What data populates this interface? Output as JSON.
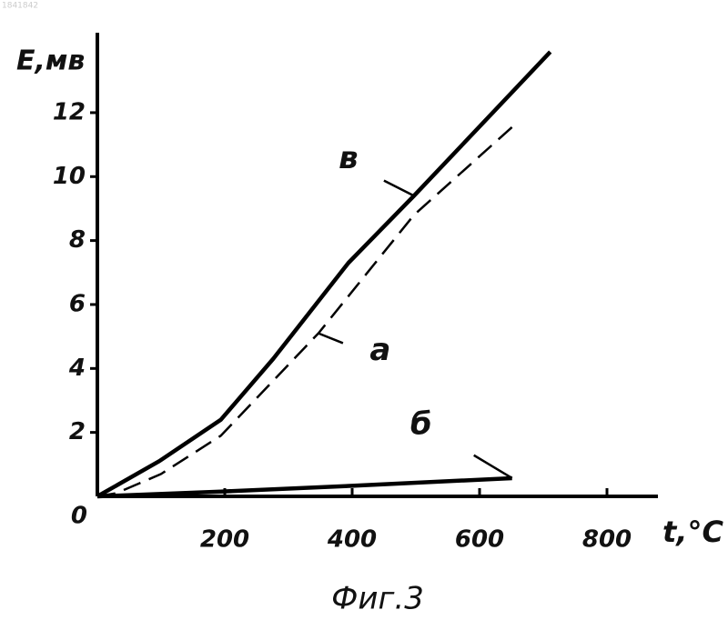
{
  "chart_data": {
    "type": "line",
    "document_id": "1841842",
    "caption": "Фиг.3",
    "y_label": "E,мв",
    "x_label": "t,°C",
    "xlim": [
      0,
      880
    ],
    "ylim": [
      0,
      14.5
    ],
    "xticks": [
      200,
      400,
      600,
      800
    ],
    "yticks": [
      0,
      2,
      4,
      6,
      8,
      10,
      12
    ],
    "grid": false,
    "series": [
      {
        "name": "в",
        "color": "#000000",
        "dashed": false,
        "x": [
          0,
          97,
          194,
          276,
          394,
          497,
          711
        ],
        "values": [
          0,
          1.1,
          2.4,
          4.3,
          7.3,
          9.4,
          13.9
        ]
      },
      {
        "name": "а",
        "color": "#000000",
        "dashed": true,
        "x": [
          0,
          30,
          100,
          194,
          347,
          497,
          654
        ],
        "values": [
          0,
          0.1,
          0.7,
          1.9,
          5.1,
          8.8,
          11.6
        ]
      },
      {
        "name": "б",
        "color": "#000000",
        "dashed": false,
        "x": [
          0,
          194,
          400,
          651
        ],
        "values": [
          0,
          0.15,
          0.33,
          0.57
        ]
      }
    ]
  }
}
